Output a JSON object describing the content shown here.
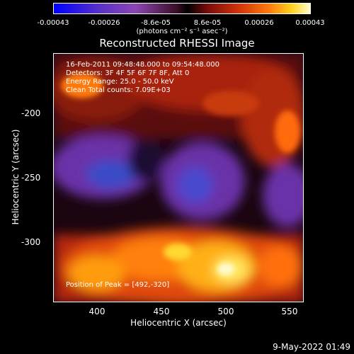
{
  "colorbar": {
    "ticks": [
      "-0.00043",
      "-0.00026",
      "-8.6e-05",
      "8.6e-05",
      "0.00026",
      "0.00043"
    ],
    "units": "(photons cm⁻² s⁻¹ asec⁻²)"
  },
  "title": "Reconstructed RHESSI Image",
  "info": {
    "line1": "16-Feb-2011 09:48:48.000 to 09:54:48.000",
    "line2": "Detectors: 3F 4F 5F 6F 7F 8F, Att 0",
    "line3": "Energy Range: 25.0 - 50.0 keV",
    "line4": "Clean    Total counts: 7.09E+03"
  },
  "peak": "Position of Peak = [492,-320]",
  "axes": {
    "xlabel": "Heliocentric X (arcsec)",
    "ylabel": "Heliocentric Y (arcsec)",
    "xticks": [
      "400",
      "450",
      "500",
      "550"
    ],
    "yticks": [
      "-200",
      "-250",
      "-300"
    ]
  },
  "timestamp": "9-May-2022 01:49"
}
